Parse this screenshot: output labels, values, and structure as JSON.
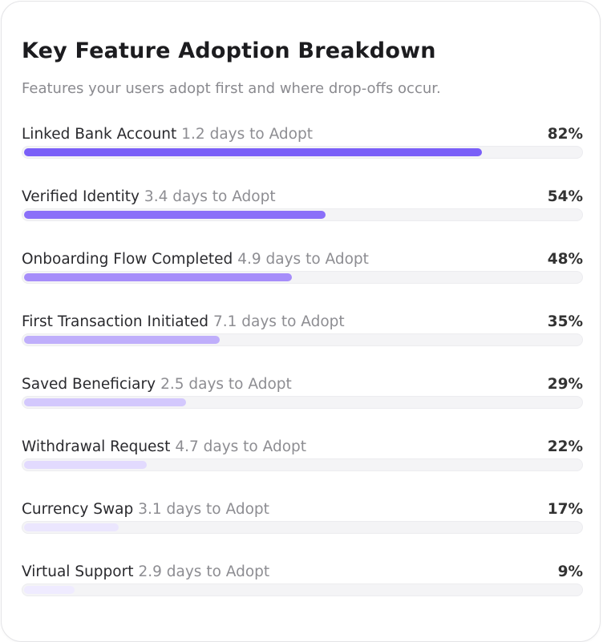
{
  "chart_data": {
    "type": "progress",
    "title": "Key Feature Adoption Breakdown",
    "subtitle": "Features your users adopt first and where drop-offs occur.",
    "categories": [
      "Linked Bank Account",
      "Verified Identity",
      "Onboarding Flow Completed",
      "First Transaction Initiated",
      "Saved Beneficiary",
      "Withdrawal Request",
      "Currency Swap",
      "Virtual Support"
    ],
    "notes": [
      "1.2 days to Adopt",
      "3.4 days to Adopt",
      "4.9 days to Adopt",
      "7.1 days to Adopt",
      "2.5 days to Adopt",
      "4.7 days to Adopt",
      "3.1 days to Adopt",
      "2.9 days to Adopt"
    ],
    "values": [
      82,
      54,
      48,
      35,
      29,
      22,
      17,
      9
    ],
    "value_labels": [
      "82%",
      "54%",
      "48%",
      "35%",
      "29%",
      "22%",
      "17%",
      "9%"
    ],
    "colors": [
      "#7a5ff8",
      "#8a6ff9",
      "#a68dfa",
      "#bfaefb",
      "#d3c8fd",
      "#e2dafe",
      "#ebe6fe",
      "#efebff"
    ],
    "xlim": [
      0,
      100
    ]
  }
}
